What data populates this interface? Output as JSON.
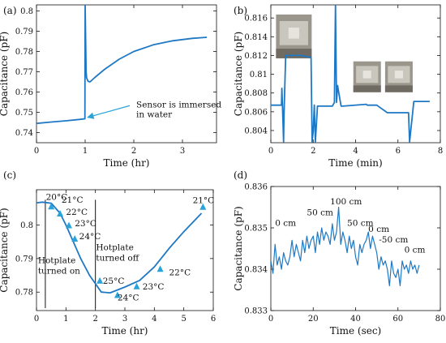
{
  "chart_data": [
    {
      "panel": "(a)",
      "type": "line",
      "xlabel": "Time (hr)",
      "ylabel": "Capacitance (pF)",
      "xlim": [
        0,
        3.7
      ],
      "ylim": [
        0.735,
        0.803
      ],
      "xticks": [
        0,
        1,
        2,
        3
      ],
      "yticks": [
        0.74,
        0.75,
        0.76,
        0.77,
        0.78,
        0.79,
        0.8
      ],
      "ytick_labels": [
        "0.74",
        "0.75",
        "0.76",
        "0.77",
        "0.78",
        "0.79",
        "0.8"
      ],
      "series": [
        {
          "x": [
            0,
            0.3,
            0.6,
            0.9,
            0.995,
            1.0,
            1.02,
            1.03,
            1.06,
            1.1,
            1.2,
            1.4,
            1.7,
            2.0,
            2.4,
            2.8,
            3.2,
            3.5
          ],
          "y": [
            0.7445,
            0.7452,
            0.7458,
            0.7465,
            0.7468,
            0.803,
            0.77,
            0.767,
            0.7653,
            0.765,
            0.7672,
            0.7712,
            0.7762,
            0.78,
            0.7833,
            0.7853,
            0.7865,
            0.787
          ]
        }
      ],
      "annotations": [
        {
          "text": [
            "Sensor is immersed",
            "in water"
          ],
          "arrow_to": [
            1.0,
            0.7475
          ],
          "text_at": [
            2.05,
            0.7525
          ]
        }
      ]
    },
    {
      "panel": "(b)",
      "type": "line",
      "xlabel": "Time (min)",
      "ylabel": "Capacitance (pF)",
      "xlim": [
        0,
        8
      ],
      "ylim": [
        0.8027,
        0.8174
      ],
      "xticks": [
        0,
        2,
        4,
        6,
        8
      ],
      "yticks": [
        0.804,
        0.806,
        0.808,
        0.81,
        0.812,
        0.814,
        0.816
      ],
      "ytick_labels": [
        "0.804",
        "0.806",
        "0.808",
        "0.81",
        "0.812",
        "0.814",
        "0.816"
      ],
      "series": [
        {
          "x": [
            0,
            0.5,
            0.52,
            0.55,
            0.6,
            0.62,
            0.65,
            0.7,
            1.4,
            1.9,
            1.95,
            2.0,
            2.05,
            2.1,
            2.2,
            2.9,
            3.0,
            3.05,
            3.1,
            3.15,
            3.3,
            3.32,
            3.4,
            4.5,
            4.55,
            5.0,
            5.5,
            6.5,
            6.55,
            6.7,
            6.75,
            7.5
          ],
          "y": [
            0.8067,
            0.8067,
            0.8085,
            0.8065,
            0.8028,
            0.8055,
            0.808,
            0.812,
            0.812,
            0.8118,
            0.8028,
            0.804,
            0.8067,
            0.8028,
            0.8066,
            0.8066,
            0.807,
            0.8174,
            0.807,
            0.8088,
            0.8068,
            0.8066,
            0.8066,
            0.8068,
            0.8067,
            0.8067,
            0.8059,
            0.8059,
            0.8028,
            0.806,
            0.8071,
            0.8071
          ]
        }
      ],
      "insets": 3
    },
    {
      "panel": "(c)",
      "type": "line",
      "xlabel": "Time (hr)",
      "ylabel": "Capacitance (pF)",
      "xlim": [
        0,
        6
      ],
      "ylim": [
        0.7745,
        0.8105
      ],
      "xticks": [
        0,
        1,
        2,
        3,
        4,
        5,
        6
      ],
      "yticks": [
        0.78,
        0.79,
        0.8
      ],
      "ytick_labels": [
        "0.78",
        "0.79",
        "0.8"
      ],
      "series": [
        {
          "x": [
            0,
            0.2,
            0.5,
            0.8,
            1.0,
            1.2,
            1.5,
            1.8,
            2.0,
            2.2,
            2.5,
            3.0,
            3.5,
            4.0,
            4.5,
            5.0,
            5.6
          ],
          "y": [
            0.8066,
            0.8068,
            0.8065,
            0.8035,
            0.8,
            0.796,
            0.79,
            0.785,
            0.7825,
            0.78,
            0.7798,
            0.7815,
            0.7835,
            0.7875,
            0.793,
            0.798,
            0.8035
          ]
        }
      ],
      "vlines": [
        0.3,
        2.0
      ],
      "temperature_labels": [
        {
          "text": "20°C",
          "x": 0.32,
          "y": 0.8075
        },
        {
          "text": "21°C",
          "x": 0.85,
          "y": 0.8066
        },
        {
          "text": "22°C",
          "x": 1.0,
          "y": 0.803
        },
        {
          "text": "23°C",
          "x": 1.3,
          "y": 0.7996
        },
        {
          "text": "24°C",
          "x": 1.45,
          "y": 0.7958
        },
        {
          "text": "25°C",
          "x": 2.25,
          "y": 0.7825
        },
        {
          "text": "24°C",
          "x": 2.75,
          "y": 0.7775
        },
        {
          "text": "23°C",
          "x": 3.6,
          "y": 0.7808
        },
        {
          "text": "22°C",
          "x": 4.5,
          "y": 0.785
        },
        {
          "text": "21°C",
          "x": 5.3,
          "y": 0.8065
        }
      ],
      "markers": [
        {
          "x": 0.5,
          "y": 0.8056
        },
        {
          "x": 0.8,
          "y": 0.8035
        },
        {
          "x": 1.1,
          "y": 0.8
        },
        {
          "x": 1.3,
          "y": 0.796
        },
        {
          "x": 2.15,
          "y": 0.7835
        },
        {
          "x": 2.75,
          "y": 0.7792
        },
        {
          "x": 3.4,
          "y": 0.7818
        },
        {
          "x": 4.2,
          "y": 0.787
        },
        {
          "x": 5.65,
          "y": 0.8055
        }
      ],
      "annotations": [
        {
          "lines": [
            "Hotplate",
            "turned on"
          ],
          "x": 0.05,
          "y": 0.7886
        },
        {
          "lines": [
            "Hotplate",
            "turned off"
          ],
          "x": 2.02,
          "y": 0.7925
        }
      ]
    },
    {
      "panel": "(d)",
      "type": "line",
      "xlabel": "Time (sec)",
      "ylabel": "Capacitance (pF)",
      "xlim": [
        0,
        80
      ],
      "ylim": [
        0.833,
        0.836
      ],
      "xticks": [
        0,
        20,
        40,
        60,
        80
      ],
      "yticks": [
        0.833,
        0.834,
        0.835,
        0.836
      ],
      "ytick_labels": [
        "0.833",
        "0.834",
        "0.835",
        "0.836"
      ],
      "series": [
        {
          "x": [
            0,
            1,
            2,
            3,
            4,
            5,
            6,
            7,
            8,
            9,
            10,
            11,
            12,
            13,
            14,
            15,
            16,
            17,
            18,
            19,
            20,
            21,
            22,
            23,
            24,
            25,
            26,
            27,
            28,
            29,
            30,
            31,
            32,
            33,
            34,
            35,
            36,
            37,
            38,
            39,
            40,
            41,
            42,
            43,
            44,
            45,
            46,
            47,
            48,
            49,
            50,
            51,
            52,
            53,
            54,
            55,
            56,
            57,
            58,
            59,
            60,
            61,
            62,
            63,
            64,
            65,
            66,
            67,
            68,
            69,
            70
          ],
          "y": [
            0.8342,
            0.8339,
            0.8346,
            0.8341,
            0.8343,
            0.834,
            0.8344,
            0.8342,
            0.8341,
            0.8343,
            0.8347,
            0.8343,
            0.8346,
            0.8344,
            0.8342,
            0.8347,
            0.8344,
            0.8348,
            0.8345,
            0.8347,
            0.8348,
            0.8344,
            0.8349,
            0.8346,
            0.835,
            0.8347,
            0.8349,
            0.8348,
            0.8346,
            0.8351,
            0.8347,
            0.8349,
            0.8355,
            0.8346,
            0.8349,
            0.8347,
            0.8344,
            0.8348,
            0.8345,
            0.8347,
            0.8343,
            0.8341,
            0.8346,
            0.8344,
            0.8346,
            0.8347,
            0.8349,
            0.8345,
            0.8348,
            0.8346,
            0.8344,
            0.834,
            0.8343,
            0.8341,
            0.8342,
            0.834,
            0.8336,
            0.8342,
            0.8339,
            0.8338,
            0.834,
            0.8336,
            0.8342,
            0.834,
            0.8341,
            0.8339,
            0.8342,
            0.834,
            0.8341,
            0.8339,
            0.8341
          ]
        }
      ],
      "annotations": [
        {
          "text": "100 cm",
          "x": 28,
          "y": 0.83557
        },
        {
          "text": "50 cm",
          "x": 17,
          "y": 0.8353
        },
        {
          "text": "50 cm",
          "x": 36,
          "y": 0.83505
        },
        {
          "text": "0 cm",
          "x": 2,
          "y": 0.83505
        },
        {
          "text": "0 cm",
          "x": 46,
          "y": 0.8349
        },
        {
          "text": "-50 cm",
          "x": 51,
          "y": 0.83465
        },
        {
          "text": "0 cm",
          "x": 63,
          "y": 0.8344
        }
      ]
    }
  ]
}
